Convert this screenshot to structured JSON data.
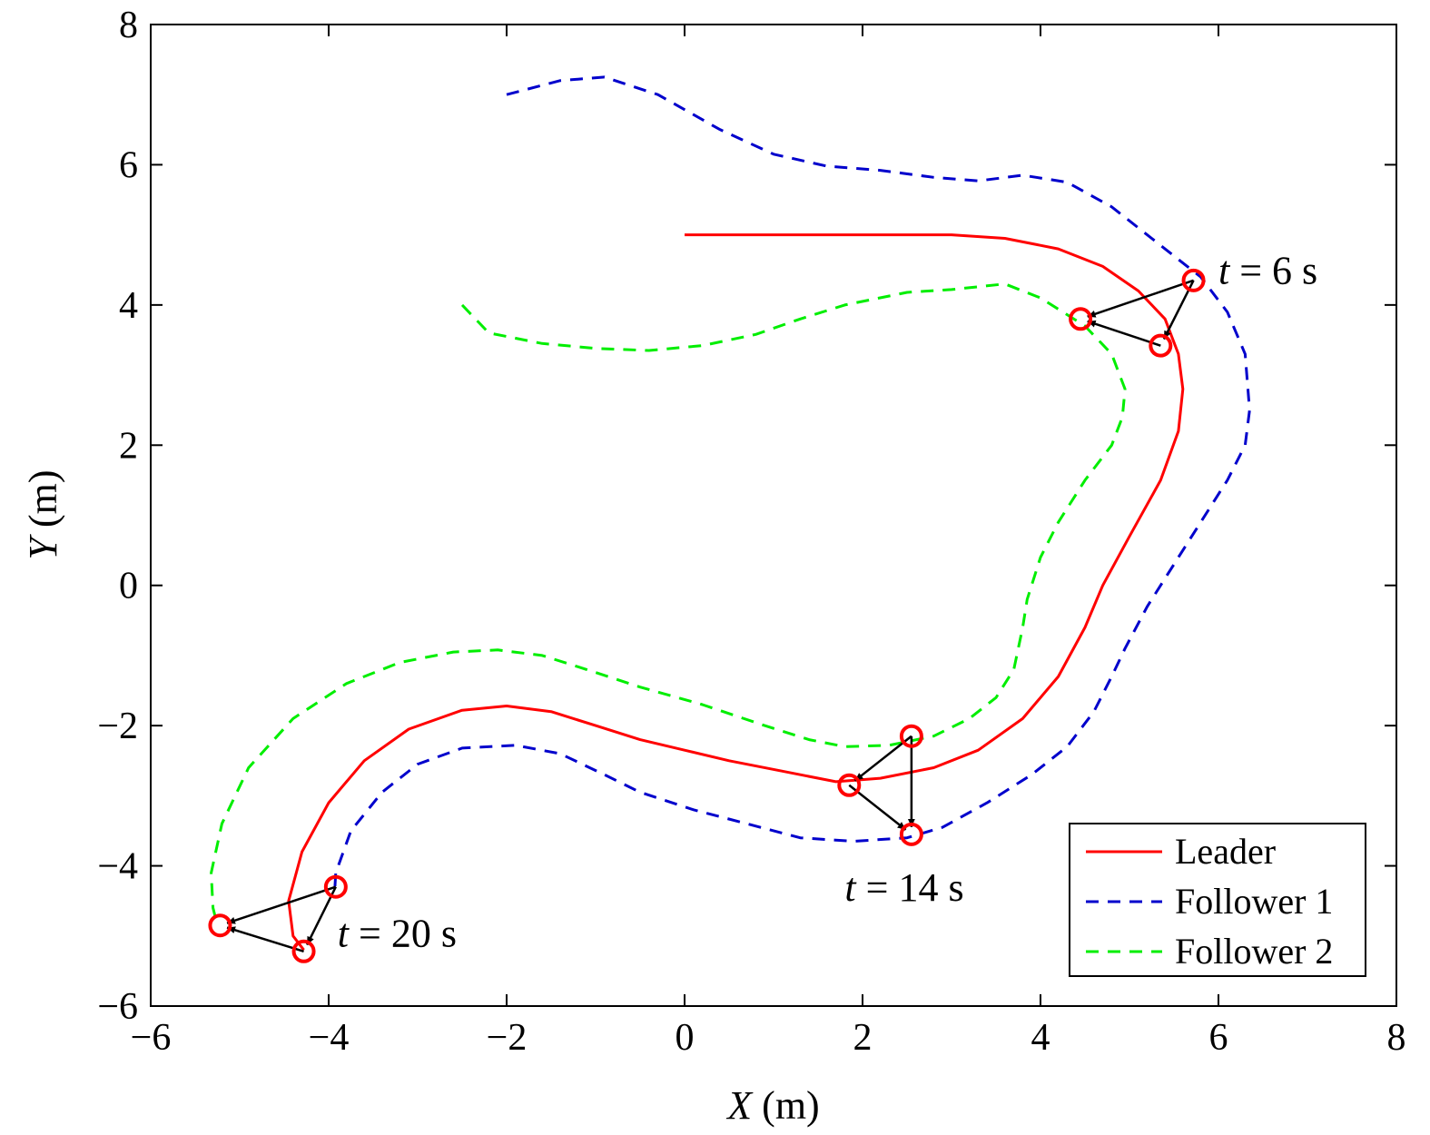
{
  "chart_data": {
    "type": "line",
    "xlabel": {
      "var": "X",
      "unit": " (m)"
    },
    "ylabel": {
      "var": "Y",
      "unit": " (m)"
    },
    "xlim": [
      -6,
      8
    ],
    "ylim": [
      -6,
      8
    ],
    "xticks": [
      -6,
      -4,
      -2,
      0,
      2,
      4,
      6,
      8
    ],
    "yticks": [
      -6,
      -4,
      -2,
      0,
      2,
      4,
      6,
      8
    ],
    "xtick_labels": [
      "−6",
      "−4",
      "−2",
      "0",
      "2",
      "4",
      "6",
      "8"
    ],
    "ytick_labels": [
      "−6",
      "−4",
      "−2",
      "0",
      "2",
      "4",
      "6",
      "8"
    ],
    "grid": false,
    "legend_position": "bottom-right",
    "series": [
      {
        "name": "Leader",
        "color": "#ff0000",
        "dash": "solid",
        "points": [
          [
            0,
            5
          ],
          [
            1,
            5
          ],
          [
            2,
            5
          ],
          [
            3,
            5
          ],
          [
            3.6,
            4.95
          ],
          [
            4.2,
            4.8
          ],
          [
            4.7,
            4.55
          ],
          [
            5.1,
            4.2
          ],
          [
            5.4,
            3.8
          ],
          [
            5.55,
            3.3
          ],
          [
            5.6,
            2.8
          ],
          [
            5.55,
            2.2
          ],
          [
            5.35,
            1.5
          ],
          [
            5.0,
            0.7
          ],
          [
            4.7,
            0
          ],
          [
            4.5,
            -0.6
          ],
          [
            4.2,
            -1.3
          ],
          [
            3.8,
            -1.9
          ],
          [
            3.3,
            -2.35
          ],
          [
            2.8,
            -2.6
          ],
          [
            2.2,
            -2.75
          ],
          [
            1.7,
            -2.8
          ],
          [
            1.1,
            -2.65
          ],
          [
            0.5,
            -2.5
          ],
          [
            0,
            -2.35
          ],
          [
            -0.5,
            -2.2
          ],
          [
            -1,
            -2.0
          ],
          [
            -1.5,
            -1.8
          ],
          [
            -2,
            -1.72
          ],
          [
            -2.5,
            -1.78
          ],
          [
            -3.1,
            -2.05
          ],
          [
            -3.6,
            -2.5
          ],
          [
            -4.0,
            -3.1
          ],
          [
            -4.3,
            -3.8
          ],
          [
            -4.45,
            -4.5
          ],
          [
            -4.4,
            -5.0
          ],
          [
            -4.28,
            -5.2
          ]
        ]
      },
      {
        "name": "Follower 1",
        "color": "#0000cc",
        "dash": "dashed",
        "points": [
          [
            -2,
            7
          ],
          [
            -1.4,
            7.2
          ],
          [
            -0.9,
            7.25
          ],
          [
            -0.3,
            7.0
          ],
          [
            0.4,
            6.5
          ],
          [
            1,
            6.15
          ],
          [
            1.6,
            5.98
          ],
          [
            2.2,
            5.92
          ],
          [
            2.8,
            5.82
          ],
          [
            3.3,
            5.77
          ],
          [
            3.8,
            5.85
          ],
          [
            4.3,
            5.75
          ],
          [
            4.8,
            5.4
          ],
          [
            5.3,
            4.9
          ],
          [
            5.8,
            4.4
          ],
          [
            6.1,
            3.9
          ],
          [
            6.3,
            3.3
          ],
          [
            6.35,
            2.5
          ],
          [
            6.3,
            2.0
          ],
          [
            6.1,
            1.5
          ],
          [
            5.8,
            0.9
          ],
          [
            5.5,
            0.3
          ],
          [
            5.2,
            -0.3
          ],
          [
            4.95,
            -0.9
          ],
          [
            4.8,
            -1.3
          ],
          [
            4.6,
            -1.8
          ],
          [
            4.3,
            -2.3
          ],
          [
            3.9,
            -2.7
          ],
          [
            3.4,
            -3.1
          ],
          [
            2.9,
            -3.45
          ],
          [
            2.5,
            -3.6
          ],
          [
            1.9,
            -3.65
          ],
          [
            1.3,
            -3.6
          ],
          [
            0.7,
            -3.4
          ],
          [
            0.1,
            -3.2
          ],
          [
            -0.5,
            -2.95
          ],
          [
            -0.9,
            -2.7
          ],
          [
            -1.4,
            -2.4
          ],
          [
            -1.9,
            -2.28
          ],
          [
            -2.5,
            -2.32
          ],
          [
            -3.0,
            -2.55
          ],
          [
            -3.4,
            -2.95
          ],
          [
            -3.75,
            -3.5
          ],
          [
            -3.92,
            -4.1
          ],
          [
            -3.93,
            -4.3
          ]
        ]
      },
      {
        "name": "Follower 2",
        "color": "#00ee00",
        "dash": "dashed",
        "points": [
          [
            -2.5,
            4
          ],
          [
            -2.2,
            3.6
          ],
          [
            -1.6,
            3.45
          ],
          [
            -1.0,
            3.38
          ],
          [
            -0.4,
            3.35
          ],
          [
            0.2,
            3.42
          ],
          [
            0.8,
            3.58
          ],
          [
            1.3,
            3.8
          ],
          [
            1.8,
            4.0
          ],
          [
            2.5,
            4.18
          ],
          [
            3.0,
            4.22
          ],
          [
            3.6,
            4.3
          ],
          [
            4.0,
            4.1
          ],
          [
            4.5,
            3.7
          ],
          [
            4.8,
            3.3
          ],
          [
            4.95,
            2.8
          ],
          [
            4.92,
            2.4
          ],
          [
            4.8,
            2.0
          ],
          [
            4.5,
            1.5
          ],
          [
            4.2,
            0.9
          ],
          [
            4.0,
            0.4
          ],
          [
            3.85,
            -0.2
          ],
          [
            3.8,
            -0.6
          ],
          [
            3.7,
            -1.2
          ],
          [
            3.5,
            -1.6
          ],
          [
            3.2,
            -1.9
          ],
          [
            2.8,
            -2.15
          ],
          [
            2.3,
            -2.28
          ],
          [
            1.8,
            -2.3
          ],
          [
            1.4,
            -2.2
          ],
          [
            0.9,
            -2.0
          ],
          [
            0.2,
            -1.7
          ],
          [
            -0.5,
            -1.45
          ],
          [
            -1.1,
            -1.2
          ],
          [
            -1.6,
            -1.0
          ],
          [
            -2.1,
            -0.92
          ],
          [
            -2.6,
            -0.95
          ],
          [
            -3.2,
            -1.1
          ],
          [
            -3.8,
            -1.4
          ],
          [
            -4.4,
            -1.9
          ],
          [
            -4.9,
            -2.6
          ],
          [
            -5.2,
            -3.4
          ],
          [
            -5.32,
            -4.1
          ],
          [
            -5.3,
            -4.6
          ],
          [
            -5.25,
            -4.85
          ]
        ]
      }
    ],
    "formations": [
      {
        "time_label": {
          "var": "t",
          "text": " = 6 s"
        },
        "label_at": [
          6.0,
          4.3
        ],
        "vertices": [
          [
            5.72,
            4.35
          ],
          [
            5.35,
            3.42
          ],
          [
            4.45,
            3.8
          ]
        ]
      },
      {
        "time_label": {
          "var": "t",
          "text": " = 14 s"
        },
        "label_at": [
          1.8,
          -4.5
        ],
        "vertices": [
          [
            2.55,
            -2.15
          ],
          [
            1.85,
            -2.85
          ],
          [
            2.55,
            -3.55
          ]
        ]
      },
      {
        "time_label": {
          "var": "t",
          "text": " = 20 s"
        },
        "label_at": [
          -3.9,
          -5.15
        ],
        "vertices": [
          [
            -3.92,
            -4.3
          ],
          [
            -4.28,
            -5.22
          ],
          [
            -5.22,
            -4.85
          ]
        ]
      }
    ],
    "marker_color": "#ff0000"
  }
}
